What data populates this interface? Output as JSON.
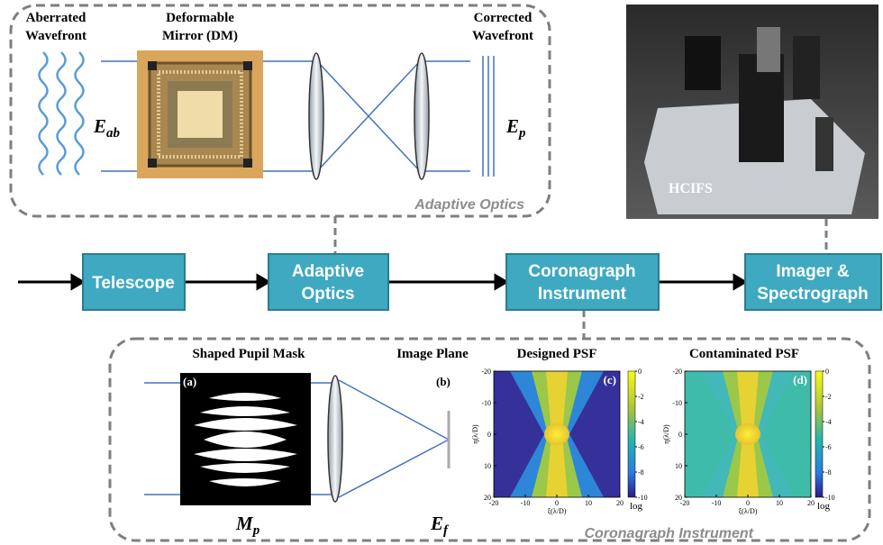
{
  "adaptive_optics_panel": {
    "aberrated_wavefront": [
      "Aberrated",
      "Wavefront"
    ],
    "deformable_mirror": [
      "Deformable",
      "Mirror (DM)"
    ],
    "corrected_wavefront": [
      "Corrected",
      "Wavefront"
    ],
    "e_ab": {
      "symbol": "E",
      "subscript": "ab"
    },
    "e_p": {
      "symbol": "E",
      "subscript": "p"
    },
    "panel_label": "Adaptive Optics"
  },
  "photo": {
    "label": "HCIFS"
  },
  "pipeline": {
    "blocks": [
      [
        "Telescope"
      ],
      [
        "Adaptive",
        "Optics"
      ],
      [
        "Coronagraph",
        "Instrument"
      ],
      [
        "Imager &",
        "Spectrograph"
      ]
    ]
  },
  "coronagraph_panel": {
    "shaped_pupil_mask": "Shaped Pupil Mask",
    "image_plane": "Image Plane",
    "designed_psf": "Designed PSF",
    "contaminated_psf": "Contaminated PSF",
    "tags": [
      "(a)",
      "(b)",
      "(c)",
      "(d)"
    ],
    "m_p": {
      "symbol": "M",
      "subscript": "p"
    },
    "e_f": {
      "symbol": "E",
      "subscript": "f"
    },
    "psf_axes": {
      "xlim": [
        -20,
        20
      ],
      "ylim": [
        -20,
        20
      ],
      "xticks": [
        -20,
        -10,
        0,
        10,
        20
      ],
      "yticks": [
        -20,
        -10,
        0,
        10,
        20
      ],
      "xlabel": "ξ(λ/D)",
      "ylabel": "η(λ/D)",
      "colorbar_lim": [
        -10,
        0
      ],
      "colorbar_ticks": [
        0,
        -2,
        -4,
        -6,
        -8,
        -10
      ],
      "colorbar_label": "log"
    },
    "panel_label": "Coronagraph Instrument"
  }
}
